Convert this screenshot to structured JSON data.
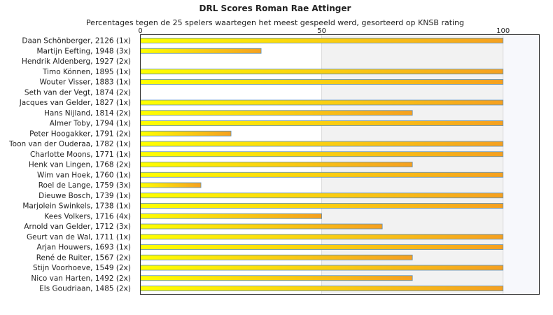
{
  "chart_data": {
    "type": "bar",
    "orientation": "horizontal",
    "title": "DRL Scores Roman Rae Attinger",
    "subtitle": "Percentages tegen de 25 spelers waartegen het meest gespeeld werd, gesorteerd op KNSB rating",
    "xlim": [
      0,
      110
    ],
    "xticks": [
      0,
      50,
      100
    ],
    "grid": true,
    "categories": [
      "Daan Schönberger, 2126 (1x)",
      "Martijn Eefting, 1948 (3x)",
      "Hendrik Aldenberg, 1927 (2x)",
      "Timo Können, 1895 (1x)",
      "Wouter Visser, 1883 (1x)",
      "Seth van der Vegt, 1874 (2x)",
      "Jacques van Gelder, 1827 (1x)",
      "Hans Nijland, 1814 (2x)",
      "Almer Toby, 1794 (1x)",
      "Peter Hoogakker, 1791 (2x)",
      "Toon van der Ouderaa, 1782 (1x)",
      "Charlotte Moons, 1771 (1x)",
      "Henk van Lingen, 1768 (2x)",
      "Wim van Hoek, 1760 (1x)",
      "Roel de Lange, 1759 (3x)",
      "Dieuwe Bosch, 1739 (1x)",
      "Marjolein Swinkels, 1738 (1x)",
      "Kees Volkers, 1716 (4x)",
      "Arnold van Gelder, 1712 (3x)",
      "Geurt van de Wal, 1711 (1x)",
      "Arjan Houwers, 1693 (1x)",
      "René de Ruiter, 1567 (2x)",
      "Stijn Voorhoeve, 1549 (2x)",
      "Nico van Harten, 1492 (2x)",
      "Els Goudriaan, 1485 (2x)"
    ],
    "values": [
      100,
      33.3,
      0,
      100,
      100,
      0,
      100,
      75,
      100,
      25,
      100,
      100,
      75,
      100,
      16.7,
      100,
      100,
      50,
      66.7,
      100,
      100,
      75,
      100,
      75,
      100
    ],
    "colors": {
      "bar_start": "#ffff00",
      "bar_end": "#f5a020",
      "bar_border": "#5b8fb9",
      "band_shade": "#f2f2f2",
      "band_light": "#f7f8fc"
    }
  }
}
